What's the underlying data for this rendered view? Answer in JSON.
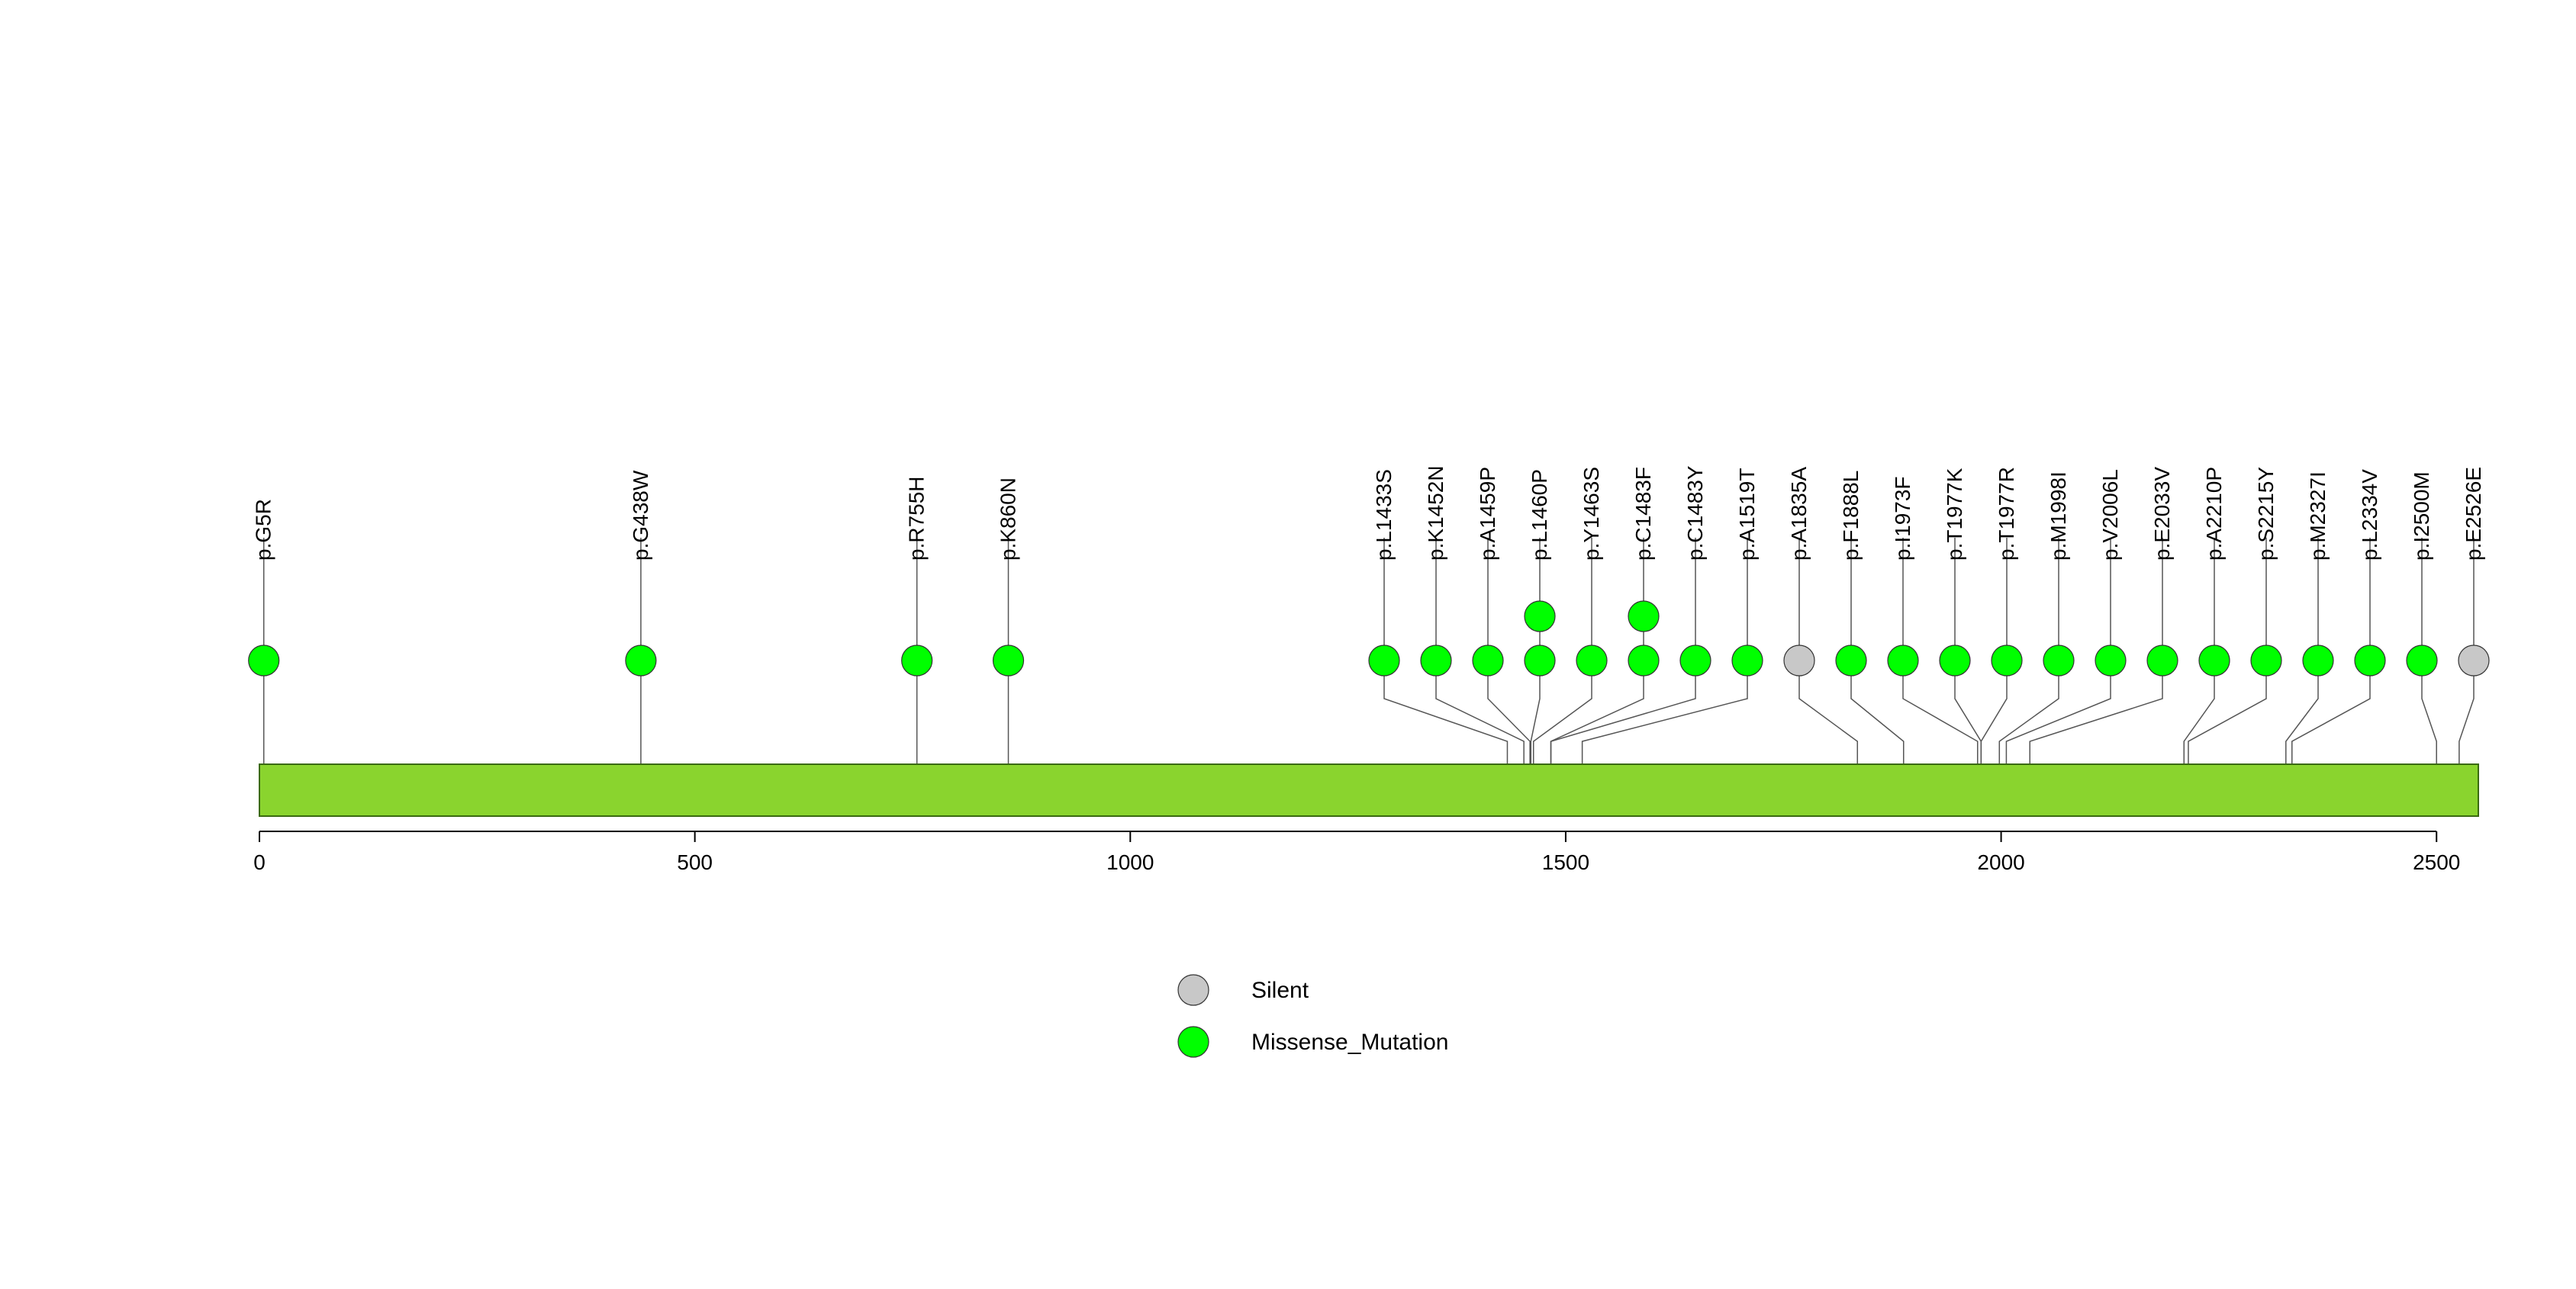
{
  "chart_data": {
    "type": "lollipop",
    "protein_length": 2548,
    "xlim": [
      0,
      2548
    ],
    "x_ticks": [
      0,
      500,
      1000,
      1500,
      2000,
      2500
    ],
    "domain_color": "#8ad42e",
    "mutation_classes": [
      {
        "name": "Silent",
        "color": "#c8c8c8"
      },
      {
        "name": "Missense_Mutation",
        "color": "#00ff00"
      }
    ],
    "mutations": [
      {
        "label": "p.G5R",
        "position": 5,
        "type": "Missense_Mutation",
        "count": 1
      },
      {
        "label": "p.G438W",
        "position": 438,
        "type": "Missense_Mutation",
        "count": 1
      },
      {
        "label": "p.R755H",
        "position": 755,
        "type": "Missense_Mutation",
        "count": 1
      },
      {
        "label": "p.K860N",
        "position": 860,
        "type": "Missense_Mutation",
        "count": 1
      },
      {
        "label": "p.L1433S",
        "position": 1433,
        "type": "Missense_Mutation",
        "count": 1
      },
      {
        "label": "p.K1452N",
        "position": 1452,
        "type": "Missense_Mutation",
        "count": 1
      },
      {
        "label": "p.A1459P",
        "position": 1459,
        "type": "Missense_Mutation",
        "count": 1
      },
      {
        "label": "p.L1460P",
        "position": 1460,
        "type": "Missense_Mutation",
        "count": 2
      },
      {
        "label": "p.Y1463S",
        "position": 1463,
        "type": "Missense_Mutation",
        "count": 1
      },
      {
        "label": "p.C1483F",
        "position": 1483,
        "type": "Missense_Mutation",
        "count": 2
      },
      {
        "label": "p.C1483Y",
        "position": 1483,
        "type": "Missense_Mutation",
        "count": 1
      },
      {
        "label": "p.A1519T",
        "position": 1519,
        "type": "Missense_Mutation",
        "count": 1
      },
      {
        "label": "p.A1835A",
        "position": 1835,
        "type": "Silent",
        "count": 1
      },
      {
        "label": "p.F1888L",
        "position": 1888,
        "type": "Missense_Mutation",
        "count": 1
      },
      {
        "label": "p.I1973F",
        "position": 1973,
        "type": "Missense_Mutation",
        "count": 1
      },
      {
        "label": "p.T1977K",
        "position": 1977,
        "type": "Missense_Mutation",
        "count": 1
      },
      {
        "label": "p.T1977R",
        "position": 1977,
        "type": "Missense_Mutation",
        "count": 1
      },
      {
        "label": "p.M1998I",
        "position": 1998,
        "type": "Missense_Mutation",
        "count": 1
      },
      {
        "label": "p.V2006L",
        "position": 2006,
        "type": "Missense_Mutation",
        "count": 1
      },
      {
        "label": "p.E2033V",
        "position": 2033,
        "type": "Missense_Mutation",
        "count": 1
      },
      {
        "label": "p.A2210P",
        "position": 2210,
        "type": "Missense_Mutation",
        "count": 1
      },
      {
        "label": "p.S2215Y",
        "position": 2215,
        "type": "Missense_Mutation",
        "count": 1
      },
      {
        "label": "p.M2327I",
        "position": 2327,
        "type": "Missense_Mutation",
        "count": 1
      },
      {
        "label": "p.L2334V",
        "position": 2334,
        "type": "Missense_Mutation",
        "count": 1
      },
      {
        "label": "p.I2500M",
        "position": 2500,
        "type": "Missense_Mutation",
        "count": 1
      },
      {
        "label": "p.E2526E",
        "position": 2526,
        "type": "Silent",
        "count": 1
      }
    ],
    "legend": {
      "placement": "bottom-center",
      "entries": [
        "Silent",
        "Missense_Mutation"
      ]
    }
  }
}
